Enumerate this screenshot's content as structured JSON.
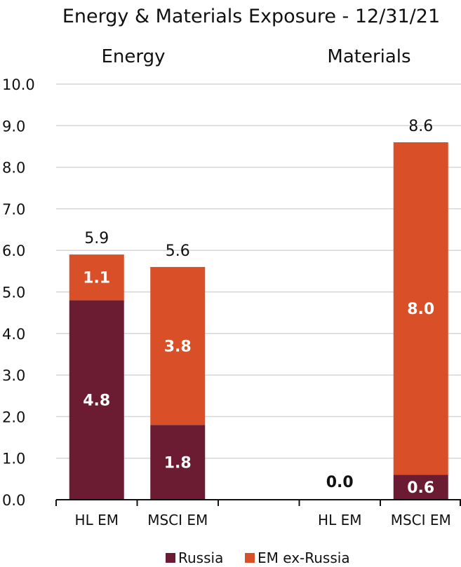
{
  "chart_data": {
    "type": "bar",
    "stacked": true,
    "title": "Energy & Materials Exposure - 12/31/21",
    "ylim": [
      0,
      10
    ],
    "yticks": [
      "0.0",
      "1.0",
      "2.0",
      "3.0",
      "4.0",
      "5.0",
      "6.0",
      "7.0",
      "8.0",
      "9.0",
      "10.0"
    ],
    "grid": true,
    "legend_position": "bottom",
    "groups": [
      {
        "label": "Energy",
        "categories": [
          "HL EM",
          "MSCI EM"
        ]
      },
      {
        "label": "Materials",
        "categories": [
          "HL EM",
          "MSCI EM"
        ]
      }
    ],
    "categories": [
      "HL EM",
      "MSCI EM",
      "HL EM",
      "MSCI EM"
    ],
    "series": [
      {
        "name": "Russia",
        "color": "#6b1c33",
        "values": [
          4.8,
          1.8,
          0.0,
          0.6
        ],
        "labels": [
          "4.8",
          "1.8",
          "",
          "0.6"
        ]
      },
      {
        "name": "EM ex-Russia",
        "color": "#d84f28",
        "values": [
          1.1,
          3.8,
          0.0,
          8.0
        ],
        "labels": [
          "1.1",
          "3.8",
          "",
          "8.0"
        ]
      }
    ],
    "totals": [
      "5.9",
      "5.6",
      "0.0",
      "8.6"
    ]
  }
}
